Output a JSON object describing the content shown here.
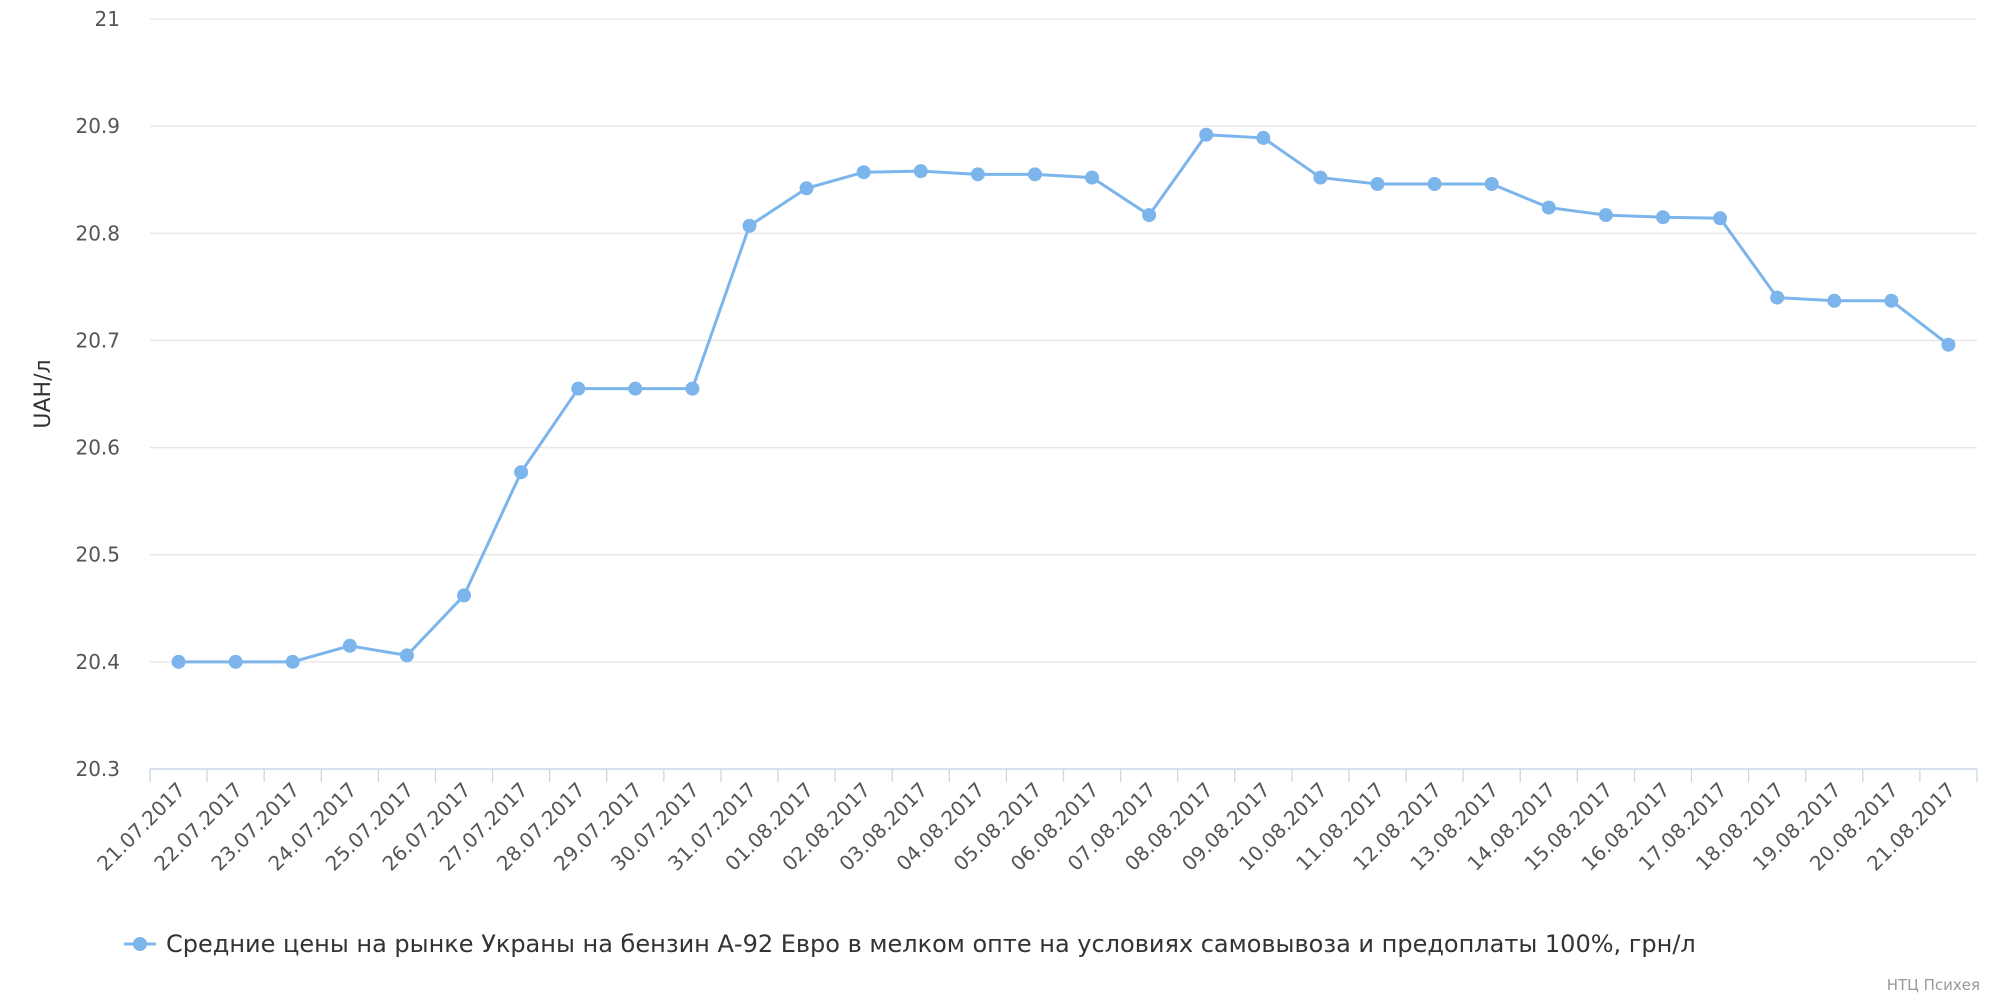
{
  "chart_data": {
    "type": "line",
    "y_label": "UAH/л",
    "categories": [
      "21.07.2017",
      "22.07.2017",
      "23.07.2017",
      "24.07.2017",
      "25.07.2017",
      "26.07.2017",
      "27.07.2017",
      "28.07.2017",
      "29.07.2017",
      "30.07.2017",
      "31.07.2017",
      "01.08.2017",
      "02.08.2017",
      "03.08.2017",
      "04.08.2017",
      "05.08.2017",
      "06.08.2017",
      "07.08.2017",
      "08.08.2017",
      "09.08.2017",
      "10.08.2017",
      "11.08.2017",
      "12.08.2017",
      "13.08.2017",
      "14.08.2017",
      "15.08.2017",
      "16.08.2017",
      "17.08.2017",
      "18.08.2017",
      "19.08.2017",
      "20.08.2017",
      "21.08.2017"
    ],
    "series": [
      {
        "name": "Средние цены на рынке Украны на бензин А-92 Евро в мелком опте на условиях самовывоза и предоплаты 100%, грн/л",
        "color": "#7cb5ec",
        "values": [
          20.4,
          20.4,
          20.4,
          20.415,
          20.406,
          20.462,
          20.577,
          20.655,
          20.655,
          20.655,
          20.807,
          20.842,
          20.857,
          20.858,
          20.855,
          20.855,
          20.852,
          20.817,
          20.892,
          20.889,
          20.852,
          20.846,
          20.846,
          20.846,
          20.824,
          20.817,
          20.815,
          20.814,
          20.74,
          20.737,
          20.737,
          20.696
        ]
      }
    ],
    "ylim": [
      20.3,
      21
    ],
    "yticks": [
      20.3,
      20.4,
      20.5,
      20.6,
      20.7,
      20.8,
      20.9,
      21
    ],
    "grid": true,
    "legend": "bottom",
    "credit": "НТЦ Психея"
  }
}
